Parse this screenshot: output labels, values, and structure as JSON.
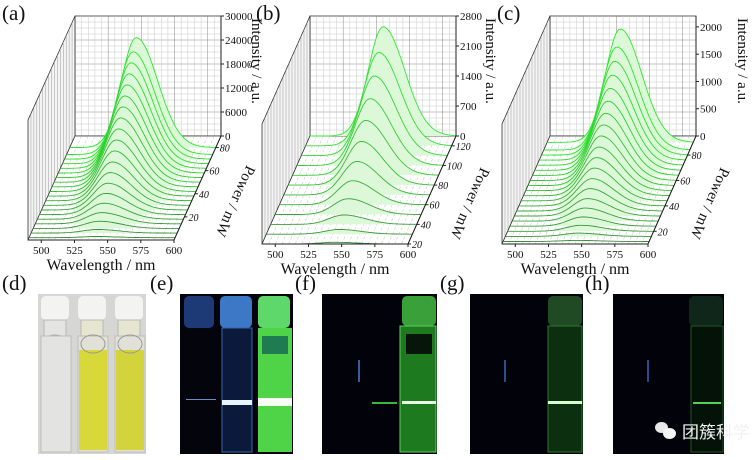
{
  "figure": {
    "panel_labels": [
      "(a)",
      "(b)",
      "(c)",
      "(d)",
      "(e)",
      "(f)",
      "(g)",
      "(h)"
    ],
    "watermark": "团簇科学"
  },
  "chart_data": [
    {
      "id": "a",
      "type": "area",
      "style": "3d-waterfall",
      "title": "",
      "xlabel": "Wavelength / nm",
      "ylabel": "Power / mW",
      "zlabel": "Intensity / a.u.",
      "xlim": [
        490,
        600
      ],
      "xticks": [
        500,
        525,
        550,
        575,
        600
      ],
      "ylim": [
        0,
        90
      ],
      "yticks": [
        20,
        40,
        60,
        80
      ],
      "zlim": [
        0,
        30000
      ],
      "zticks": [
        0,
        6000,
        12000,
        18000,
        24000,
        30000
      ],
      "peak_wavelength_nm": 540,
      "series_count": 20,
      "power_mW": [
        2,
        6,
        10,
        14,
        18,
        22,
        26,
        30,
        34,
        38,
        42,
        46,
        50,
        54,
        58,
        62,
        66,
        70,
        74,
        80
      ],
      "peak_intensity": [
        300,
        900,
        1800,
        2800,
        4000,
        5300,
        6700,
        8200,
        9700,
        11300,
        12900,
        14500,
        16100,
        17700,
        19300,
        20900,
        22500,
        24100,
        25700,
        27500
      ]
    },
    {
      "id": "b",
      "type": "area",
      "style": "3d-waterfall",
      "title": "",
      "xlabel": "Wavelength / nm",
      "ylabel": "Power / mW",
      "zlabel": "Intensity / a.u.",
      "xlim": [
        490,
        600
      ],
      "xticks": [
        500,
        525,
        550,
        575,
        600
      ],
      "ylim": [
        20,
        130
      ],
      "yticks": [
        20,
        40,
        60,
        80,
        100,
        120
      ],
      "zlim": [
        0,
        2800
      ],
      "zticks": [
        0,
        700,
        1400,
        2100,
        2800
      ],
      "peak_wavelength_nm": 545,
      "series_count": 12,
      "power_mW": [
        20,
        30,
        40,
        50,
        60,
        70,
        80,
        90,
        100,
        110,
        120,
        130
      ],
      "peak_intensity": [
        40,
        110,
        220,
        370,
        560,
        780,
        1020,
        1280,
        1560,
        1860,
        2180,
        2550
      ]
    },
    {
      "id": "c",
      "type": "area",
      "style": "3d-waterfall",
      "title": "",
      "xlabel": "Wavelength / nm",
      "ylabel": "Power / mW",
      "zlabel": "Intensity / a.u.",
      "xlim": [
        490,
        600
      ],
      "xticks": [
        500,
        525,
        550,
        575,
        600
      ],
      "ylim": [
        10,
        95
      ],
      "yticks": [
        20,
        40,
        60,
        80
      ],
      "zlim": [
        0,
        2200
      ],
      "zticks": [
        0,
        500,
        1000,
        1500,
        2000
      ],
      "peak_wavelength_nm": 545,
      "series_count": 20,
      "power_mW": [
        12,
        16,
        20,
        24,
        28,
        32,
        36,
        40,
        44,
        48,
        52,
        56,
        60,
        64,
        68,
        72,
        76,
        80,
        84,
        90
      ],
      "peak_intensity": [
        20,
        60,
        110,
        170,
        240,
        320,
        410,
        500,
        600,
        700,
        800,
        910,
        1020,
        1140,
        1270,
        1410,
        1560,
        1720,
        1890,
        2080
      ]
    }
  ],
  "photos": [
    {
      "id": "d",
      "description": "three vials under ambient light: clear, yellow, yellow"
    },
    {
      "id": "e",
      "description": "three vials under UV: dark, blue glow, bright green glow"
    },
    {
      "id": "f",
      "description": "vials under laser: right vial green emission"
    },
    {
      "id": "g",
      "description": "vials under laser: weaker green emission"
    },
    {
      "id": "h",
      "description": "vials under laser: faint green emission"
    }
  ],
  "colors": {
    "curve": "#2aa82a",
    "fill": "#d8f7d4",
    "grid": "#8c8c8c",
    "axis": "#222222"
  }
}
